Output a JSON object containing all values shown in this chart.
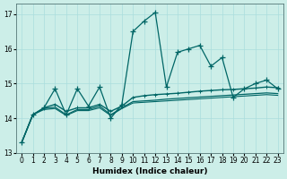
{
  "xlabel": "Humidex (Indice chaleur)",
  "background_color": "#cceee8",
  "grid_color": "#aadddd",
  "line_color": "#006666",
  "xlim": [
    -0.5,
    23.5
  ],
  "ylim": [
    13.0,
    17.3
  ],
  "yticks": [
    13,
    14,
    15,
    16,
    17
  ],
  "xticks": [
    0,
    1,
    2,
    3,
    4,
    5,
    6,
    7,
    8,
    9,
    10,
    11,
    12,
    13,
    14,
    15,
    16,
    17,
    18,
    19,
    20,
    21,
    22,
    23
  ],
  "series_main": [
    13.3,
    14.1,
    14.3,
    14.85,
    14.1,
    14.85,
    14.35,
    14.9,
    14.0,
    14.4,
    16.5,
    16.8,
    17.05,
    14.9,
    15.9,
    16.0,
    16.1,
    15.5,
    15.75,
    14.6,
    14.85,
    15.0,
    15.1,
    14.85
  ],
  "series_avg1": [
    13.3,
    14.1,
    14.3,
    14.4,
    14.2,
    14.3,
    14.3,
    14.4,
    14.2,
    14.35,
    14.6,
    14.65,
    14.68,
    14.7,
    14.72,
    14.75,
    14.78,
    14.8,
    14.82,
    14.83,
    14.85,
    14.87,
    14.9,
    14.88
  ],
  "series_avg2": [
    13.3,
    14.1,
    14.28,
    14.32,
    14.1,
    14.25,
    14.25,
    14.35,
    14.1,
    14.3,
    14.48,
    14.5,
    14.52,
    14.55,
    14.57,
    14.59,
    14.61,
    14.63,
    14.65,
    14.67,
    14.69,
    14.71,
    14.73,
    14.71
  ],
  "series_avg3": [
    13.3,
    14.1,
    14.25,
    14.28,
    14.08,
    14.22,
    14.22,
    14.3,
    14.08,
    14.28,
    14.44,
    14.46,
    14.48,
    14.5,
    14.52,
    14.54,
    14.56,
    14.58,
    14.6,
    14.62,
    14.64,
    14.66,
    14.68,
    14.66
  ]
}
